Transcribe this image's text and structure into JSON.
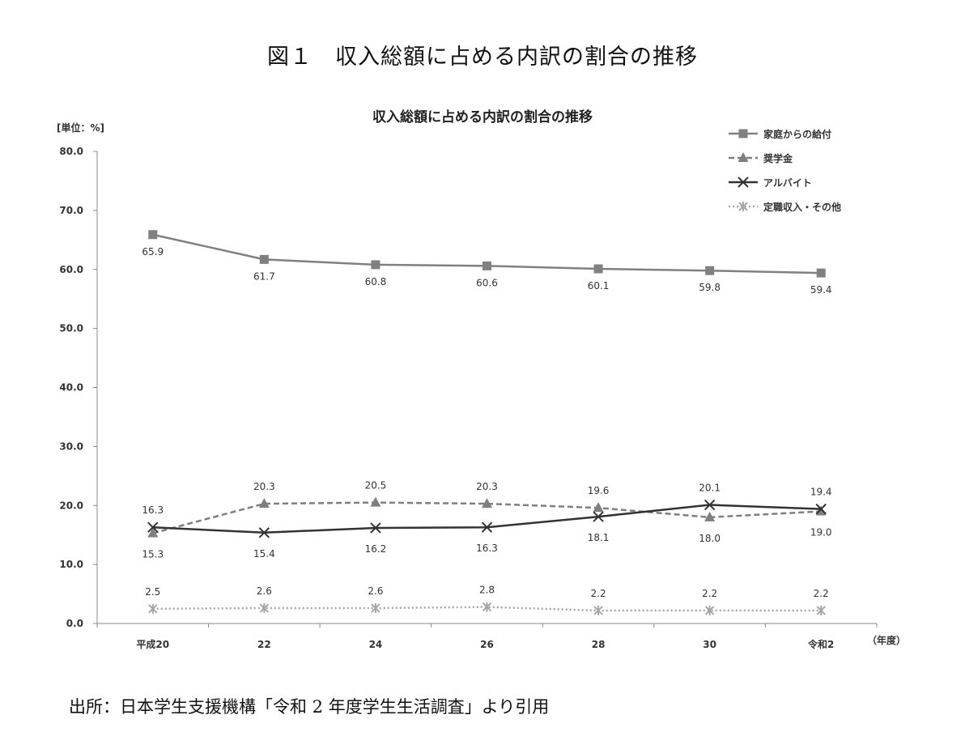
{
  "figure_title": "図１　収入総額に占める内訳の割合の推移",
  "source": "出所：日本学生支援機構「令和 2 年度学生生活調査」より引用",
  "chart_data": {
    "type": "line",
    "title": "収入総額に占める内訳の割合の推移",
    "ylabel": "[単位：%]",
    "xlabel": "（年度）",
    "categories": [
      "平成20",
      "22",
      "24",
      "26",
      "28",
      "30",
      "令和2"
    ],
    "ylim": [
      0,
      80
    ],
    "yticks": [
      "0.0",
      "10.0",
      "20.0",
      "30.0",
      "40.0",
      "50.0",
      "60.0",
      "70.0",
      "80.0"
    ],
    "grid": false,
    "legend_position": "top-right",
    "series": [
      {
        "name": "家庭からの給付",
        "values": [
          65.9,
          61.7,
          60.8,
          60.6,
          60.1,
          59.8,
          59.4
        ],
        "color": "#808080",
        "marker": "square",
        "dash": "solid"
      },
      {
        "name": "奨学金",
        "values": [
          15.3,
          20.3,
          20.5,
          20.3,
          19.6,
          18.0,
          19.0
        ],
        "color": "#7f7f7f",
        "marker": "triangle",
        "dash": "dashed"
      },
      {
        "name": "アルバイト",
        "values": [
          16.3,
          15.4,
          16.2,
          16.3,
          18.1,
          20.1,
          19.4
        ],
        "color": "#333333",
        "marker": "x",
        "dash": "solid"
      },
      {
        "name": "定職収入・その他",
        "values": [
          2.5,
          2.6,
          2.6,
          2.8,
          2.2,
          2.2,
          2.2
        ],
        "color": "#a6a6a6",
        "marker": "asterisk",
        "dash": "dotted"
      }
    ]
  }
}
